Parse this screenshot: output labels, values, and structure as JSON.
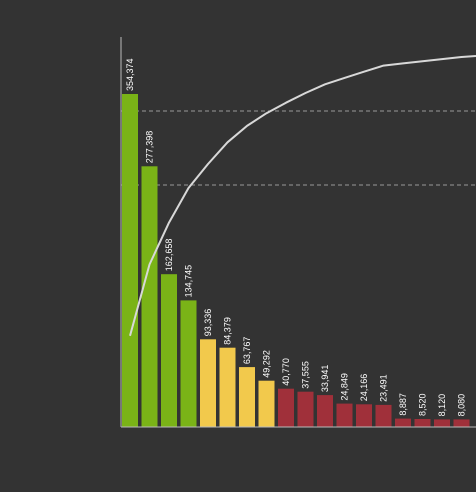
{
  "chart_data": {
    "type": "bar",
    "title": "",
    "xlabel": "",
    "ylabel": "",
    "ylim": [
      0,
      400000
    ],
    "grid": "horizontal dashed",
    "values": [
      354374,
      277398,
      162658,
      134745,
      93336,
      84379,
      63767,
      49292,
      40770,
      37555,
      33941,
      24849,
      24166,
      23491,
      8887,
      8520,
      8120,
      8080
    ],
    "labels": [
      "354,374",
      "277,398",
      "162,658",
      "134,745",
      "93,336",
      "84,379",
      "63,767",
      "49,292",
      "40,770",
      "37,555",
      "33,941",
      "24,849",
      "24,166",
      "23,491",
      "8,887",
      "8,520",
      "8,120",
      "8,080"
    ],
    "bar_colors": [
      "#7ab317",
      "#7ab317",
      "#7ab317",
      "#7ab317",
      "#f2c94c",
      "#f2c94c",
      "#f2c94c",
      "#f2c94c",
      "#a0303a",
      "#a0303a",
      "#a0303a",
      "#a0303a",
      "#a0303a",
      "#a0303a",
      "#a0303a",
      "#a0303a",
      "#a0303a",
      "#a0303a"
    ],
    "cumulative_line": {
      "color": "#d8d8d8",
      "type": "cumulative percent"
    }
  },
  "colors": {
    "background": "#333333",
    "axis": "#bbbbbb",
    "grid": "#9a9a9a",
    "label": "#ffffff"
  }
}
